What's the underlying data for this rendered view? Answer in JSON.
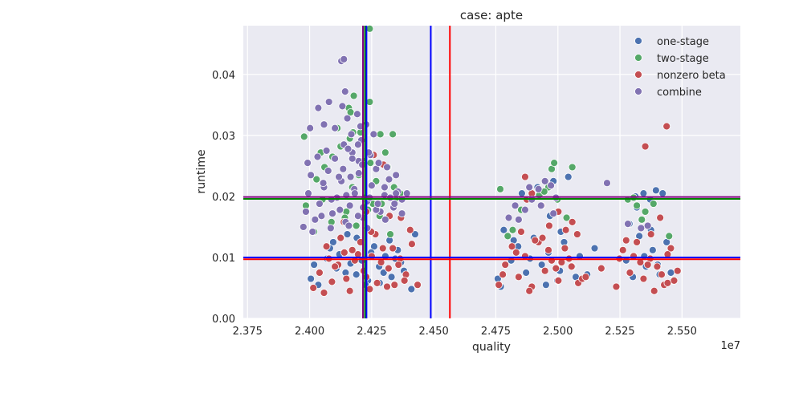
{
  "chart_data": {
    "type": "scatter",
    "title": "case: apte",
    "xlabel": "quality",
    "ylabel": "runtime",
    "x_offset_label": "1e7",
    "xlim": [
      2.3733,
      2.5735
    ],
    "ylim": [
      0.0,
      0.048
    ],
    "x_ticks": [
      2.375,
      2.4,
      2.425,
      2.45,
      2.475,
      2.5,
      2.525,
      2.55
    ],
    "x_tick_labels": [
      "2.375",
      "2.400",
      "2.425",
      "2.450",
      "2.475",
      "2.500",
      "2.525",
      "2.550"
    ],
    "y_ticks": [
      0.0,
      0.01,
      0.02,
      0.03,
      0.04
    ],
    "y_tick_labels": [
      "0.00",
      "0.01",
      "0.02",
      "0.03",
      "0.04"
    ],
    "grid": true,
    "background": "#eaeaf2",
    "legend_position": "top-right",
    "series": [
      {
        "name": "one-stage",
        "color": "#4c72b0",
        "x": [
          2.4005,
          2.4035,
          2.407,
          2.4095,
          2.412,
          2.4145,
          2.4165,
          2.419,
          2.421,
          2.4235,
          2.426,
          2.428,
          2.4305,
          2.433,
          2.4355,
          2.438,
          2.4425,
          2.441,
          2.4018,
          2.4082,
          2.4152,
          2.4225,
          2.4298,
          2.4368,
          2.4108,
          2.4248,
          2.4322,
          2.4188,
          2.4282,
          2.4345,
          2.4758,
          2.4782,
          2.4812,
          2.484,
          2.4872,
          2.4903,
          2.4935,
          2.4962,
          2.4998,
          2.5025,
          2.5058,
          2.5088,
          2.5118,
          2.5148,
          2.477,
          2.4822,
          2.4888,
          2.4952,
          2.5012,
          2.5072,
          2.4855,
          2.4918,
          2.4982,
          2.5042,
          2.4968,
          2.5008,
          2.5275,
          2.5302,
          2.5328,
          2.5355,
          2.5382,
          2.541,
          2.5438,
          2.5465,
          2.5288,
          2.5348,
          2.5402,
          2.5455,
          2.5318,
          2.5372,
          2.5312,
          2.5345,
          2.5395,
          2.5422,
          2.5375
        ],
        "y": [
          0.0065,
          0.0055,
          0.0098,
          0.0125,
          0.0105,
          0.0075,
          0.009,
          0.0132,
          0.0095,
          0.0062,
          0.0118,
          0.0085,
          0.0102,
          0.0068,
          0.0112,
          0.0078,
          0.0138,
          0.0048,
          0.0088,
          0.0115,
          0.0138,
          0.0055,
          0.0075,
          0.0092,
          0.0082,
          0.0108,
          0.0128,
          0.0072,
          0.0058,
          0.0098,
          0.0065,
          0.0145,
          0.0095,
          0.0118,
          0.0075,
          0.0132,
          0.0088,
          0.0108,
          0.0062,
          0.0125,
          0.0085,
          0.0102,
          0.0072,
          0.0115,
          0.0052,
          0.0128,
          0.0098,
          0.0055,
          0.0142,
          0.0068,
          0.0205,
          0.0215,
          0.0225,
          0.0232,
          0.0168,
          0.0078,
          0.0095,
          0.0068,
          0.0135,
          0.0085,
          0.0112,
          0.0072,
          0.0125,
          0.0062,
          0.0155,
          0.0102,
          0.0088,
          0.0075,
          0.0182,
          0.0195,
          0.02,
          0.0205,
          0.021,
          0.0205,
          0.0145
        ]
      },
      {
        "name": "two-stage",
        "color": "#55a868",
        "x": [
          2.3985,
          2.3995,
          2.4028,
          2.406,
          2.4092,
          2.4125,
          2.4148,
          2.4172,
          2.4198,
          2.4222,
          2.4245,
          2.4268,
          2.429,
          2.4315,
          2.434,
          2.4365,
          2.3978,
          2.4045,
          2.4112,
          2.4162,
          2.4205,
          2.4255,
          2.4305,
          2.4352,
          2.4018,
          2.4088,
          2.4142,
          2.4188,
          2.4235,
          2.4282,
          2.4325,
          2.4052,
          2.4242,
          2.4178,
          2.4242,
          2.4285,
          2.4335,
          2.4218,
          2.4158,
          2.4165,
          2.4175,
          2.4768,
          2.4798,
          2.4852,
          2.4888,
          2.4925,
          2.4962,
          2.4998,
          2.5035,
          2.4975,
          2.4985,
          2.5058,
          2.4818,
          2.4945,
          2.5282,
          2.5318,
          2.5352,
          2.5385,
          2.5448,
          2.5305,
          2.5338
        ],
        "y": [
          0.0185,
          0.0205,
          0.0228,
          0.0248,
          0.0265,
          0.0282,
          0.0175,
          0.0215,
          0.0235,
          0.0198,
          0.0255,
          0.0225,
          0.0188,
          0.0248,
          0.0215,
          0.0205,
          0.0298,
          0.0272,
          0.0312,
          0.0295,
          0.0305,
          0.0188,
          0.0272,
          0.0198,
          0.0142,
          0.0158,
          0.0165,
          0.0152,
          0.0178,
          0.0168,
          0.0138,
          0.0195,
          0.0475,
          0.0365,
          0.0355,
          0.0302,
          0.0302,
          0.0258,
          0.0345,
          0.0338,
          0.0305,
          0.0212,
          0.0135,
          0.0178,
          0.0195,
          0.0202,
          0.0215,
          0.0195,
          0.0165,
          0.0245,
          0.0255,
          0.0248,
          0.0145,
          0.0208,
          0.0195,
          0.0185,
          0.0175,
          0.0188,
          0.0135,
          0.0198,
          0.0162
        ]
      },
      {
        "name": "nonzero beta",
        "color": "#c44e52",
        "x": [
          2.4015,
          2.404,
          2.4068,
          2.409,
          2.4115,
          2.414,
          2.4162,
          2.4182,
          2.4205,
          2.4228,
          2.425,
          2.4272,
          2.4295,
          2.4318,
          2.4342,
          2.4365,
          2.4388,
          2.4412,
          2.4435,
          2.4058,
          2.4102,
          2.4148,
          2.4195,
          2.4242,
          2.4288,
          2.4335,
          2.4382,
          2.4125,
          2.4218,
          2.4265,
          2.4312,
          2.4358,
          2.4405,
          2.4172,
          2.4078,
          2.4258,
          2.4298,
          2.4138,
          2.4228,
          2.4248,
          2.4322,
          2.4368,
          2.4762,
          2.4788,
          2.4815,
          2.4842,
          2.4868,
          2.4895,
          2.4922,
          2.4948,
          2.4975,
          2.5002,
          2.5028,
          2.5055,
          2.5082,
          2.4778,
          2.4832,
          2.4885,
          2.4938,
          2.4992,
          2.5045,
          2.5098,
          2.4852,
          2.4908,
          2.4962,
          2.5015,
          2.4875,
          2.4935,
          2.5058,
          2.4868,
          2.4965,
          2.4895,
          2.5032,
          2.5002,
          2.5078,
          2.5112,
          2.5175,
          2.5235,
          2.5262,
          2.529,
          2.5318,
          2.5345,
          2.5372,
          2.54,
          2.5428,
          2.5455,
          2.5482,
          2.5275,
          2.5332,
          2.5388,
          2.5442,
          2.5305,
          2.5362,
          2.5418,
          2.5468,
          2.5248,
          2.5412,
          2.5438,
          2.5352,
          2.5375,
          2.5442
        ],
        "y": [
          0.005,
          0.0075,
          0.0118,
          0.006,
          0.0088,
          0.0108,
          0.0045,
          0.0095,
          0.0125,
          0.0068,
          0.0102,
          0.0058,
          0.0115,
          0.0082,
          0.0055,
          0.0098,
          0.0072,
          0.0122,
          0.0055,
          0.0042,
          0.0085,
          0.0065,
          0.0105,
          0.0048,
          0.0092,
          0.0115,
          0.0062,
          0.0132,
          0.0078,
          0.0138,
          0.0052,
          0.0088,
          0.0145,
          0.0112,
          0.0098,
          0.0268,
          0.0252,
          0.0158,
          0.0175,
          0.0142,
          0.0168,
          0.0165,
          0.0055,
          0.0088,
          0.0118,
          0.0068,
          0.0102,
          0.0052,
          0.0125,
          0.0078,
          0.0095,
          0.0062,
          0.0115,
          0.0085,
          0.0058,
          0.0072,
          0.0108,
          0.0045,
          0.0132,
          0.0082,
          0.0098,
          0.0065,
          0.0142,
          0.0128,
          0.0112,
          0.0092,
          0.0195,
          0.0185,
          0.0158,
          0.0232,
          0.0152,
          0.0205,
          0.0145,
          0.0175,
          0.0138,
          0.0068,
          0.0082,
          0.0052,
          0.0112,
          0.0075,
          0.0125,
          0.0065,
          0.0098,
          0.0085,
          0.0055,
          0.0115,
          0.0078,
          0.0128,
          0.0092,
          0.0045,
          0.0105,
          0.0102,
          0.0088,
          0.0072,
          0.0062,
          0.0098,
          0.0165,
          0.0315,
          0.0282,
          0.0138,
          0.0058
        ]
      },
      {
        "name": "combine",
        "color": "#8172b2",
        "x": [
          2.3975,
          2.3985,
          2.3995,
          2.4005,
          2.4022,
          2.404,
          2.4058,
          2.4075,
          2.4092,
          2.411,
          2.4128,
          2.4145,
          2.4162,
          2.418,
          2.4198,
          2.4215,
          2.4232,
          2.425,
          2.4268,
          2.4285,
          2.4302,
          2.432,
          2.4338,
          2.4355,
          2.4372,
          2.4012,
          2.4048,
          2.4085,
          2.4122,
          2.4158,
          2.4195,
          2.4232,
          2.4268,
          2.4305,
          2.4342,
          2.3992,
          2.4032,
          2.4068,
          2.4102,
          2.4138,
          2.4172,
          2.4208,
          2.4245,
          2.4278,
          2.4312,
          2.4348,
          2.4055,
          2.4118,
          2.4182,
          2.4242,
          2.4302,
          2.4088,
          2.4148,
          2.4215,
          2.4275,
          2.4135,
          2.4198,
          2.4155,
          2.4102,
          2.4058,
          2.4002,
          2.4192,
          2.4228,
          2.4258,
          2.4132,
          2.4078,
          2.4035,
          2.4168,
          2.4205,
          2.4143,
          2.4128,
          2.4138,
          2.4238,
          2.4152,
          2.4195,
          2.4172,
          2.4165,
          2.4212,
          2.4325,
          2.4348,
          2.4372,
          2.4392,
          2.4802,
          2.4842,
          2.4868,
          2.4895,
          2.4922,
          2.4948,
          2.4972,
          2.4992,
          2.4828,
          2.4885,
          2.4932,
          2.4982,
          2.5198,
          2.5282,
          2.5335,
          2.5362
        ],
        "y": [
          0.015,
          0.0175,
          0.0205,
          0.0235,
          0.0162,
          0.0188,
          0.0215,
          0.0242,
          0.0172,
          0.0198,
          0.0225,
          0.0158,
          0.0185,
          0.0212,
          0.0238,
          0.0165,
          0.0192,
          0.0218,
          0.0245,
          0.0175,
          0.0202,
          0.0228,
          0.0182,
          0.0208,
          0.0195,
          0.0142,
          0.0168,
          0.0148,
          0.0178,
          0.0152,
          0.0168,
          0.0148,
          0.0178,
          0.0162,
          0.0188,
          0.0255,
          0.0265,
          0.0275,
          0.0262,
          0.0285,
          0.0272,
          0.0292,
          0.0268,
          0.0255,
          0.0248,
          0.0235,
          0.0222,
          0.0232,
          0.0205,
          0.0198,
          0.0215,
          0.0195,
          0.0202,
          0.0182,
          0.0188,
          0.0245,
          0.0258,
          0.0278,
          0.0312,
          0.0318,
          0.0312,
          0.0335,
          0.0318,
          0.0302,
          0.0348,
          0.0355,
          0.0345,
          0.0302,
          0.0315,
          0.0372,
          0.0422,
          0.0425,
          0.0272,
          0.0328,
          0.0285,
          0.0262,
          0.0232,
          0.0252,
          0.0198,
          0.0205,
          0.0172,
          0.0205,
          0.0165,
          0.0162,
          0.0178,
          0.0195,
          0.0212,
          0.0225,
          0.0218,
          0.0198,
          0.0185,
          0.0215,
          0.0185,
          0.0172,
          0.0222,
          0.0155,
          0.0148,
          0.0152
        ]
      }
    ],
    "reference_lines": [
      {
        "orientation": "vertical",
        "value": 2.4215,
        "color": "#800080"
      },
      {
        "orientation": "vertical",
        "value": 2.4223,
        "color": "#008000"
      },
      {
        "orientation": "vertical",
        "value": 2.4229,
        "color": "#0000ff"
      },
      {
        "orientation": "vertical",
        "value": 2.4488,
        "color": "#0000ff"
      },
      {
        "orientation": "vertical",
        "value": 2.4565,
        "color": "#ff0000"
      },
      {
        "orientation": "horizontal",
        "value": 0.0097,
        "color": "#ff0000"
      },
      {
        "orientation": "horizontal",
        "value": 0.01,
        "color": "#0000ff"
      },
      {
        "orientation": "horizontal",
        "value": 0.0196,
        "color": "#008000"
      },
      {
        "orientation": "horizontal",
        "value": 0.0199,
        "color": "#800080"
      }
    ]
  }
}
